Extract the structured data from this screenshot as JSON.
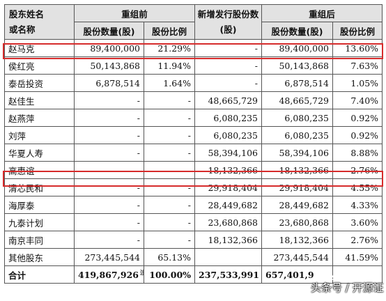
{
  "header": {
    "name_col": "股东姓名\n或名称",
    "before_group": "重组前",
    "new_issue": "新增发行股份数(股)",
    "after_group": "重组后",
    "shares_before": "股份数量(股)",
    "ratio_before": "股份比例",
    "shares_after": "股份数量(股)",
    "ratio_after": "股份比例"
  },
  "rows": [
    {
      "name": "赵马克",
      "shares_before": "89,400,000",
      "ratio_before": "21.29%",
      "new_issue": "-",
      "shares_after": "89,400,000",
      "ratio_after": "13.60%"
    },
    {
      "name": "侯红亮",
      "shares_before": "50,143,868",
      "ratio_before": "11.94%",
      "new_issue": "-",
      "shares_after": "50,143,868",
      "ratio_after": "7.63%"
    },
    {
      "name": "泰岳投资",
      "shares_before": "6,878,514",
      "ratio_before": "1.64%",
      "new_issue": "-",
      "shares_after": "6,878,514",
      "ratio_after": "1.05%"
    },
    {
      "name": "赵佳生",
      "shares_before": "-",
      "ratio_before": "-",
      "new_issue": "48,665,729",
      "shares_after": "48,665,729",
      "ratio_after": "7.40%"
    },
    {
      "name": "赵燕萍",
      "shares_before": "-",
      "ratio_before": "-",
      "new_issue": "6,080,235",
      "shares_after": "6,080,235",
      "ratio_after": "0.92%"
    },
    {
      "name": "刘萍",
      "shares_before": "-",
      "ratio_before": "-",
      "new_issue": "6,080,235",
      "shares_after": "6,080,235",
      "ratio_after": "0.92%"
    },
    {
      "name": "华夏人寿",
      "shares_before": "-",
      "ratio_before": "-",
      "new_issue": "58,394,106",
      "shares_after": "58,394,106",
      "ratio_after": "8.88%"
    },
    {
      "name": "高惠谊",
      "shares_before": "-",
      "ratio_before": "-",
      "new_issue": "18,132,366",
      "shares_after": "18,132,366",
      "ratio_after": "2.76%"
    },
    {
      "name": "清芯民和",
      "shares_before": "-",
      "ratio_before": "-",
      "new_issue": "29,918,404",
      "shares_after": "29,918,404",
      "ratio_after": "4.55%"
    },
    {
      "name": "海厚泰",
      "shares_before": "-",
      "ratio_before": "-",
      "new_issue": "28,449,682",
      "shares_after": "28,449,682",
      "ratio_after": "4.33%"
    },
    {
      "name": "九泰计划",
      "shares_before": "-",
      "ratio_before": "-",
      "new_issue": "23,680,868",
      "shares_after": "23,680,868",
      "ratio_after": "3.60%"
    },
    {
      "name": "南京丰同",
      "shares_before": "-",
      "ratio_before": "-",
      "new_issue": "18,132,366",
      "shares_after": "18,132,366",
      "ratio_after": "2.76%"
    },
    {
      "name": "其他股东",
      "shares_before": "273,445,544",
      "ratio_before": "65.13%",
      "new_issue": "",
      "shares_after": "273,445,544",
      "ratio_after": "41.59%"
    }
  ],
  "total": {
    "name": "合计",
    "shares_before": "419,867,926",
    "note_mark": "注",
    "ratio_before": "100.00%",
    "new_issue": "237,533,991",
    "shares_after": "657,401,9",
    "ratio_after": ""
  },
  "watermark": "头条号 / 开源证",
  "highlight_color": "#d62b2b",
  "header_bg": "#e2e2e2"
}
